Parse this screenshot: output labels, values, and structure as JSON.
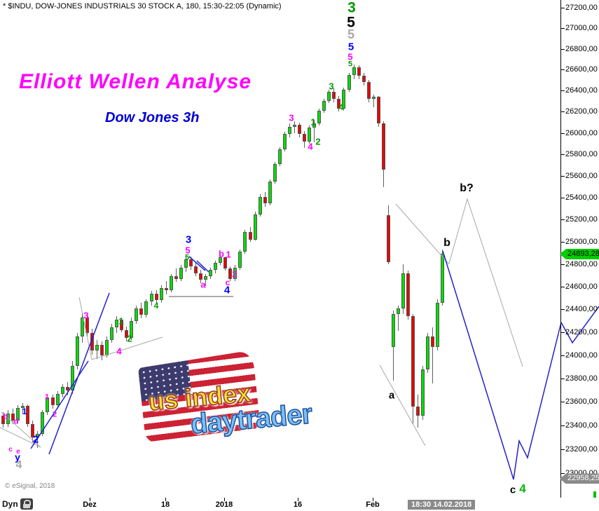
{
  "window_title": "* $INDU, DOW-JONES INDUSTRIALS 30 STOCK A, 180, 15:30-22:05 (Dynamic)",
  "annotations": {
    "headline": "Elliott Wellen Analyse",
    "subtitle": "Dow Jones 3h",
    "copyright": "© eSignal, 2018"
  },
  "watermark": {
    "line1": "us index",
    "line2": "daytrader"
  },
  "statusbar": {
    "mode": "Dyn",
    "lock_icon": "padlock-icon"
  },
  "price_axis": {
    "p_min": 23000,
    "p_max": 27200,
    "step": 200,
    "last_price_label": "24893,28",
    "target_price_label": "22958,25",
    "target_price": 22958.25
  },
  "time_axis": {
    "ticks": [
      {
        "label": "Dez",
        "x": 128
      },
      {
        "label": "18",
        "x": 236
      },
      {
        "label": "2018",
        "x": 320
      },
      {
        "label": "16",
        "x": 425
      },
      {
        "label": "Feb",
        "x": 532
      }
    ],
    "cursor_label": "18:30 14.02.2018",
    "cursor_x": 624
  },
  "chart_data": {
    "type": "candlestick",
    "title": "Elliott Wellen Analyse",
    "subtitle": "Dow Jones 3h",
    "symbol": "$INDU DOW-JONES INDUSTRIALS 30",
    "interval_minutes": 180,
    "session": "15:30-22:05",
    "y_scale": "log",
    "ylim": [
      23000,
      27200
    ],
    "grid": false,
    "last_price": 24893.28,
    "mapping": {
      "y_top": 11,
      "p_top": 27200,
      "log_b": 3960.6,
      "x0": 4,
      "dx": 7.05,
      "body_w": 5
    },
    "candles": [
      [
        23480,
        23510,
        23380,
        23410
      ],
      [
        23410,
        23530,
        23390,
        23500
      ],
      [
        23500,
        23540,
        23410,
        23440
      ],
      [
        23440,
        23570,
        23420,
        23550
      ],
      [
        23550,
        23590,
        23500,
        23565
      ],
      [
        23565,
        23580,
        23390,
        23410
      ],
      [
        23410,
        23440,
        23260,
        23300
      ],
      [
        23300,
        23350,
        23210,
        23330
      ],
      [
        23330,
        23530,
        23310,
        23510
      ],
      [
        23510,
        23660,
        23490,
        23640
      ],
      [
        23640,
        23660,
        23540,
        23570
      ],
      [
        23570,
        23690,
        23545,
        23670
      ],
      [
        23670,
        23750,
        23640,
        23730
      ],
      [
        23730,
        23770,
        23655,
        23700
      ],
      [
        23700,
        23950,
        23670,
        23910
      ],
      [
        23910,
        24190,
        23880,
        24160
      ],
      [
        24160,
        24370,
        24110,
        24330
      ],
      [
        24330,
        24360,
        24160,
        24190
      ],
      [
        24190,
        24230,
        24005,
        24040
      ],
      [
        24040,
        24130,
        23970,
        24090
      ],
      [
        24090,
        24120,
        23955,
        24000
      ],
      [
        24000,
        24160,
        23980,
        24130
      ],
      [
        24130,
        24270,
        24110,
        24240
      ],
      [
        24240,
        24340,
        24190,
        24310
      ],
      [
        24310,
        24330,
        24200,
        24220
      ],
      [
        24220,
        24250,
        24120,
        24150
      ],
      [
        24150,
        24330,
        24130,
        24300
      ],
      [
        24300,
        24430,
        24270,
        24410
      ],
      [
        24410,
        24460,
        24320,
        24350
      ],
      [
        24350,
        24490,
        24330,
        24470
      ],
      [
        24470,
        24560,
        24430,
        24540
      ],
      [
        24540,
        24570,
        24450,
        24480
      ],
      [
        24480,
        24610,
        24460,
        24590
      ],
      [
        24590,
        24650,
        24530,
        24570
      ],
      [
        24570,
        24710,
        24550,
        24690
      ],
      [
        24690,
        24760,
        24640,
        24670
      ],
      [
        24670,
        24790,
        24650,
        24770
      ],
      [
        24770,
        24860,
        24730,
        24840
      ],
      [
        24840,
        24870,
        24750,
        24780
      ],
      [
        24780,
        24810,
        24690,
        24720
      ],
      [
        24720,
        24750,
        24630,
        24660
      ],
      [
        24660,
        24710,
        24605,
        24690
      ],
      [
        24690,
        24770,
        24670,
        24750
      ],
      [
        24750,
        24830,
        24720,
        24810
      ],
      [
        24810,
        24880,
        24790,
        24860
      ],
      [
        24860,
        24870,
        24740,
        24760
      ],
      [
        24760,
        24780,
        24650,
        24670
      ],
      [
        24670,
        24790,
        24650,
        24770
      ],
      [
        24770,
        24930,
        24750,
        24910
      ],
      [
        24910,
        25110,
        24890,
        25090
      ],
      [
        25090,
        25130,
        25000,
        25020
      ],
      [
        25020,
        25270,
        25010,
        25250
      ],
      [
        25250,
        25430,
        25230,
        25410
      ],
      [
        25410,
        25450,
        25320,
        25350
      ],
      [
        25350,
        25570,
        25330,
        25550
      ],
      [
        25550,
        25730,
        25530,
        25710
      ],
      [
        25710,
        25870,
        25690,
        25850
      ],
      [
        25850,
        26010,
        25830,
        25990
      ],
      [
        25990,
        26090,
        25960,
        26060
      ],
      [
        26060,
        26110,
        26000,
        26080
      ],
      [
        26080,
        26100,
        25960,
        25990
      ],
      [
        25990,
        26020,
        25860,
        25920
      ],
      [
        25920,
        26070,
        25900,
        26050
      ],
      [
        26050,
        26120,
        25910,
        26090
      ],
      [
        26090,
        26230,
        26070,
        26210
      ],
      [
        26210,
        26320,
        26190,
        26300
      ],
      [
        26300,
        26410,
        26280,
        26390
      ],
      [
        26390,
        26420,
        26290,
        26320
      ],
      [
        26320,
        26350,
        26200,
        26230
      ],
      [
        26230,
        26430,
        26210,
        26410
      ],
      [
        26410,
        26570,
        26390,
        26550
      ],
      [
        26550,
        26650,
        26510,
        26620
      ],
      [
        26620,
        26640,
        26510,
        26540
      ],
      [
        26540,
        26570,
        26450,
        26480
      ],
      [
        26480,
        26500,
        26290,
        26320
      ],
      [
        26320,
        26360,
        26240,
        26340
      ],
      [
        26340,
        26350,
        26060,
        26090
      ],
      [
        26090,
        26110,
        25500,
        25660
      ],
      [
        25240,
        25330,
        24800,
        24820
      ],
      [
        24070,
        24390,
        23780,
        24360
      ],
      [
        24360,
        24430,
        24210,
        24410
      ],
      [
        24410,
        24800,
        24360,
        24720
      ],
      [
        24720,
        24740,
        24310,
        24340
      ],
      [
        24340,
        24360,
        23420,
        23560
      ],
      [
        23560,
        23660,
        23380,
        23480
      ],
      [
        23480,
        23910,
        23450,
        23880
      ],
      [
        23880,
        24190,
        23850,
        24160
      ],
      [
        24160,
        24240,
        23760,
        24070
      ],
      [
        24070,
        24490,
        24040,
        24460
      ],
      [
        24460,
        24930,
        24430,
        24893.28
      ]
    ],
    "wave_labels": [
      {
        "t": "3",
        "x": 502,
        "y": 11,
        "c": "#009900",
        "fs": 21
      },
      {
        "t": "5",
        "x": 501,
        "y": 32,
        "c": "#000000",
        "fs": 21
      },
      {
        "t": "5",
        "x": 501,
        "y": 49,
        "c": "#A8A8A8",
        "fs": 18
      },
      {
        "t": "5",
        "x": 501,
        "y": 67,
        "c": "#0000FF",
        "fs": 15
      },
      {
        "t": "5",
        "x": 500,
        "y": 81,
        "c": "#FF00FF",
        "fs": 13
      },
      {
        "t": "5",
        "x": 500,
        "y": 92,
        "c": "#009900",
        "fs": 11
      },
      {
        "t": "3",
        "x": 269,
        "y": 342,
        "c": "#0000FF",
        "fs": 15
      },
      {
        "t": "5",
        "x": 268,
        "y": 357,
        "c": "#FF00FF",
        "fs": 13
      },
      {
        "t": "5",
        "x": 267,
        "y": 368,
        "c": "#009900",
        "fs": 11
      },
      {
        "t": "b",
        "x": 316,
        "y": 362,
        "c": "#FF00FF",
        "fs": 13
      },
      {
        "t": "1",
        "x": 326,
        "y": 363,
        "c": "#FF00FF",
        "fs": 13
      },
      {
        "t": "2",
        "x": 335,
        "y": 391,
        "c": "#FF00FF",
        "fs": 13
      },
      {
        "t": "a",
        "x": 290,
        "y": 406,
        "c": "#FF00FF",
        "fs": 13
      },
      {
        "t": "c",
        "x": 325,
        "y": 403,
        "c": "#FF00FF",
        "fs": 12
      },
      {
        "t": "4",
        "x": 324,
        "y": 414,
        "c": "#0000FF",
        "fs": 15
      },
      {
        "t": "3",
        "x": 123,
        "y": 450,
        "c": "#FF00FF",
        "fs": 13
      },
      {
        "t": "1",
        "x": 173,
        "y": 458,
        "c": "#009900",
        "fs": 13
      },
      {
        "t": "2",
        "x": 185,
        "y": 483,
        "c": "#009900",
        "fs": 13
      },
      {
        "t": "4",
        "x": 170,
        "y": 501,
        "c": "#FF00FF",
        "fs": 13
      },
      {
        "t": "4",
        "x": 223,
        "y": 436,
        "c": "#009900",
        "fs": 12
      },
      {
        "t": "3",
        "x": 416,
        "y": 168,
        "c": "#FF00FF",
        "fs": 13
      },
      {
        "t": "1",
        "x": 447,
        "y": 174,
        "c": "#009900",
        "fs": 13
      },
      {
        "t": "2",
        "x": 454,
        "y": 202,
        "c": "#009900",
        "fs": 13
      },
      {
        "t": "4",
        "x": 443,
        "y": 209,
        "c": "#FF00FF",
        "fs": 13
      },
      {
        "t": "3",
        "x": 473,
        "y": 123,
        "c": "#009900",
        "fs": 13
      },
      {
        "t": "4",
        "x": 487,
        "y": 153,
        "c": "#009900",
        "fs": 12
      },
      {
        "t": "b?",
        "x": 666,
        "y": 269,
        "c": "#000000",
        "fs": 16
      },
      {
        "t": "b",
        "x": 638,
        "y": 347,
        "c": "#000000",
        "fs": 16
      },
      {
        "t": "a",
        "x": 559,
        "y": 564,
        "c": "#000000",
        "fs": 15
      },
      {
        "t": "c",
        "x": 732,
        "y": 699,
        "c": "#000000",
        "fs": 15
      },
      {
        "t": "4",
        "x": 746,
        "y": 697,
        "c": "#00B800",
        "fs": 17
      },
      {
        "t": "b",
        "x": 8,
        "y": 595,
        "c": "#FF00FF",
        "fs": 11
      },
      {
        "t": "d",
        "x": 23,
        "y": 602,
        "c": "#FF00FF",
        "fs": 11
      },
      {
        "t": "1",
        "x": 35,
        "y": 587,
        "c": "#0000FF",
        "fs": 12
      },
      {
        "t": "1",
        "x": 67,
        "y": 567,
        "c": "#FF00FF",
        "fs": 11
      },
      {
        "t": "2",
        "x": 78,
        "y": 592,
        "c": "#FF00FF",
        "fs": 11
      },
      {
        "t": "2",
        "x": 51,
        "y": 627,
        "c": "#0000FF",
        "fs": 15
      },
      {
        "t": "c",
        "x": 15,
        "y": 642,
        "c": "#FF00FF",
        "fs": 10
      },
      {
        "t": "e",
        "x": 26,
        "y": 645,
        "c": "#FF00FF",
        "fs": 10
      },
      {
        "t": "y",
        "x": 25,
        "y": 652,
        "c": "#0000FF",
        "fs": 14
      },
      {
        "t": "4",
        "x": 27,
        "y": 664,
        "c": "#A8A8A8",
        "fs": 16
      }
    ],
    "trendlines": [
      {
        "name": "wedge-lower-left-1",
        "c": "#A8A8A8",
        "w": 1,
        "pts": [
          [
            2,
            588
          ],
          [
            58,
            638
          ]
        ]
      },
      {
        "name": "wedge-lower-left-2",
        "c": "#A8A8A8",
        "w": 1,
        "pts": [
          [
            0,
            610
          ],
          [
            58,
            638
          ]
        ]
      },
      {
        "name": "triangle-left-1",
        "c": "#A8A8A8",
        "w": 1,
        "pts": [
          [
            113,
            424
          ],
          [
            131,
            513
          ]
        ]
      },
      {
        "name": "triangle-left-2",
        "c": "#A8A8A8",
        "w": 1,
        "pts": [
          [
            131,
            513
          ],
          [
            232,
            481
          ]
        ]
      },
      {
        "name": "support-line-mid",
        "c": "#ABABAB",
        "w": 2,
        "pts": [
          [
            241,
            423
          ],
          [
            333,
            423
          ]
        ]
      },
      {
        "name": "crash-channel-upper",
        "c": "#A8A8A8",
        "w": 1,
        "pts": [
          [
            565,
            291
          ],
          [
            641,
            377
          ]
        ]
      },
      {
        "name": "crash-channel-lower",
        "c": "#A8A8A8",
        "w": 1,
        "pts": [
          [
            542,
            521
          ],
          [
            607,
            636
          ]
        ]
      },
      {
        "name": "projection-gray-b",
        "c": "#A8A8A8",
        "w": 1,
        "pts": [
          [
            641,
            376
          ],
          [
            667,
            284
          ],
          [
            746,
            523
          ]
        ]
      },
      {
        "name": "blue-channel-left-1",
        "c": "#2222CC",
        "w": 1.5,
        "pts": [
          [
            44,
            640
          ],
          [
            126,
            515
          ]
        ]
      },
      {
        "name": "blue-channel-left-2",
        "c": "#2222CC",
        "w": 1.5,
        "pts": [
          [
            70,
            648
          ],
          [
            156,
            418
          ]
        ]
      },
      {
        "name": "blue-mark-mid-1",
        "c": "#2222CC",
        "w": 1.5,
        "pts": [
          [
            270,
            366
          ],
          [
            293,
            386
          ]
        ]
      },
      {
        "name": "blue-mark-mid-2",
        "c": "#2222CC",
        "w": 1.5,
        "pts": [
          [
            281,
            372
          ],
          [
            298,
            388
          ]
        ]
      },
      {
        "name": "projection-blue-c4",
        "c": "#2222CC",
        "w": 1.5,
        "pts": [
          [
            632,
            358
          ],
          [
            733,
            684
          ],
          [
            741,
            629
          ],
          [
            753,
            653
          ],
          [
            801,
            460
          ]
        ]
      },
      {
        "name": "projection-blue-axis",
        "c": "#2222CC",
        "w": 1.5,
        "pts": [
          [
            801,
            460
          ],
          [
            817,
            489
          ],
          [
            855,
            437
          ]
        ]
      }
    ]
  },
  "colors": {
    "up": "#00DE00",
    "down": "#E80000",
    "wick": "#606060",
    "magenta": "#FF00FF",
    "blue": "#0000FF",
    "green": "#009900",
    "gray": "#A8A8A8",
    "badge_last_bg": "#00CC00",
    "badge_target_bg": "#8a8a8a"
  }
}
